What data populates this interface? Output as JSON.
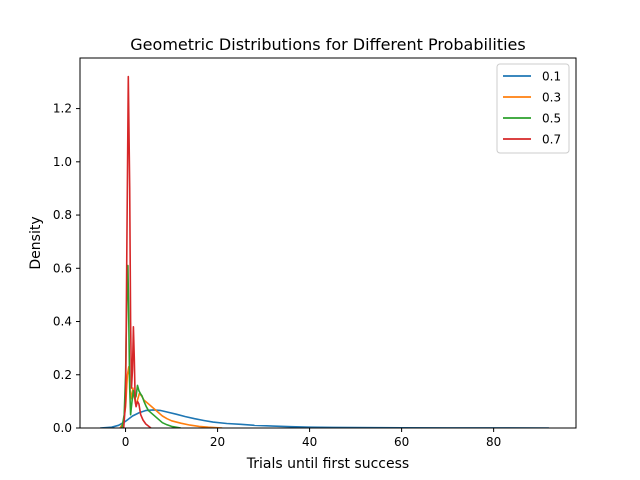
{
  "chart_data": {
    "type": "line",
    "title": "Geometric Distributions for Different Probabilities",
    "xlabel": "Trials until first success",
    "ylabel": "Density",
    "xlim": [
      -9.9,
      97.9
    ],
    "ylim": [
      0,
      1.39
    ],
    "xticks": [
      0,
      20,
      40,
      60,
      80
    ],
    "yticks": [
      0.0,
      0.2,
      0.4,
      0.6,
      0.8,
      1.0,
      1.2
    ],
    "grid": false,
    "legend_position": "top-right",
    "series": [
      {
        "name": "0.1",
        "color": "#1f77b4",
        "points": [
          [
            -5.5,
            0.0
          ],
          [
            -3,
            0.003
          ],
          [
            -1.5,
            0.01
          ],
          [
            0,
            0.025
          ],
          [
            1.5,
            0.045
          ],
          [
            3,
            0.058
          ],
          [
            4.5,
            0.066
          ],
          [
            6,
            0.068
          ],
          [
            7.5,
            0.066
          ],
          [
            9,
            0.06
          ],
          [
            11,
            0.052
          ],
          [
            13,
            0.043
          ],
          [
            15,
            0.035
          ],
          [
            17,
            0.028
          ],
          [
            19,
            0.022
          ],
          [
            22,
            0.017
          ],
          [
            25,
            0.014
          ],
          [
            28,
            0.01
          ],
          [
            32,
            0.007
          ],
          [
            36,
            0.005
          ],
          [
            40,
            0.003
          ],
          [
            45,
            0.0022
          ],
          [
            50,
            0.0015
          ],
          [
            55,
            0.001
          ],
          [
            60,
            0.0007
          ],
          [
            70,
            0.0004
          ],
          [
            80,
            0.0002
          ],
          [
            92,
            0.0
          ]
        ]
      },
      {
        "name": "0.3",
        "color": "#ff7f0e",
        "points": [
          [
            -1.2,
            0.0
          ],
          [
            -0.5,
            0.02
          ],
          [
            0,
            0.08
          ],
          [
            0.4,
            0.2
          ],
          [
            0.7,
            0.23
          ],
          [
            1.0,
            0.14
          ],
          [
            1.3,
            0.11
          ],
          [
            1.6,
            0.15
          ],
          [
            1.9,
            0.12
          ],
          [
            2.2,
            0.09
          ],
          [
            2.5,
            0.1
          ],
          [
            3.0,
            0.13
          ],
          [
            3.5,
            0.12
          ],
          [
            4.0,
            0.105
          ],
          [
            5,
            0.09
          ],
          [
            6,
            0.075
          ],
          [
            7,
            0.06
          ],
          [
            8,
            0.045
          ],
          [
            9,
            0.035
          ],
          [
            10,
            0.027
          ],
          [
            12,
            0.018
          ],
          [
            14,
            0.011
          ],
          [
            16,
            0.006
          ],
          [
            18,
            0.003
          ],
          [
            21,
            0.0
          ]
        ]
      },
      {
        "name": "0.5",
        "color": "#2ca02c",
        "points": [
          [
            -0.8,
            0.0
          ],
          [
            -0.3,
            0.05
          ],
          [
            0,
            0.2
          ],
          [
            0.3,
            0.5
          ],
          [
            0.5,
            0.61
          ],
          [
            0.7,
            0.4
          ],
          [
            0.9,
            0.15
          ],
          [
            1.1,
            0.05
          ],
          [
            1.4,
            0.1
          ],
          [
            1.7,
            0.14
          ],
          [
            2.0,
            0.11
          ],
          [
            2.3,
            0.12
          ],
          [
            2.6,
            0.16
          ],
          [
            2.9,
            0.14
          ],
          [
            3.2,
            0.13
          ],
          [
            3.6,
            0.12
          ],
          [
            4.0,
            0.1
          ],
          [
            4.5,
            0.08
          ],
          [
            5,
            0.065
          ],
          [
            6,
            0.05
          ],
          [
            7,
            0.035
          ],
          [
            8,
            0.02
          ],
          [
            9,
            0.012
          ],
          [
            10,
            0.006
          ],
          [
            12,
            0.0
          ]
        ]
      },
      {
        "name": "0.7",
        "color": "#d62728",
        "points": [
          [
            -0.4,
            0.0
          ],
          [
            0,
            0.1
          ],
          [
            0.3,
            0.7
          ],
          [
            0.6,
            1.32
          ],
          [
            0.9,
            0.9
          ],
          [
            1.1,
            0.4
          ],
          [
            1.3,
            0.15
          ],
          [
            1.5,
            0.22
          ],
          [
            1.7,
            0.38
          ],
          [
            1.9,
            0.26
          ],
          [
            2.1,
            0.1
          ],
          [
            2.3,
            0.08
          ],
          [
            2.6,
            0.1
          ],
          [
            2.9,
            0.09
          ],
          [
            3.3,
            0.05
          ],
          [
            3.8,
            0.03
          ],
          [
            4.4,
            0.015
          ],
          [
            5.5,
            0.0
          ]
        ]
      }
    ]
  }
}
